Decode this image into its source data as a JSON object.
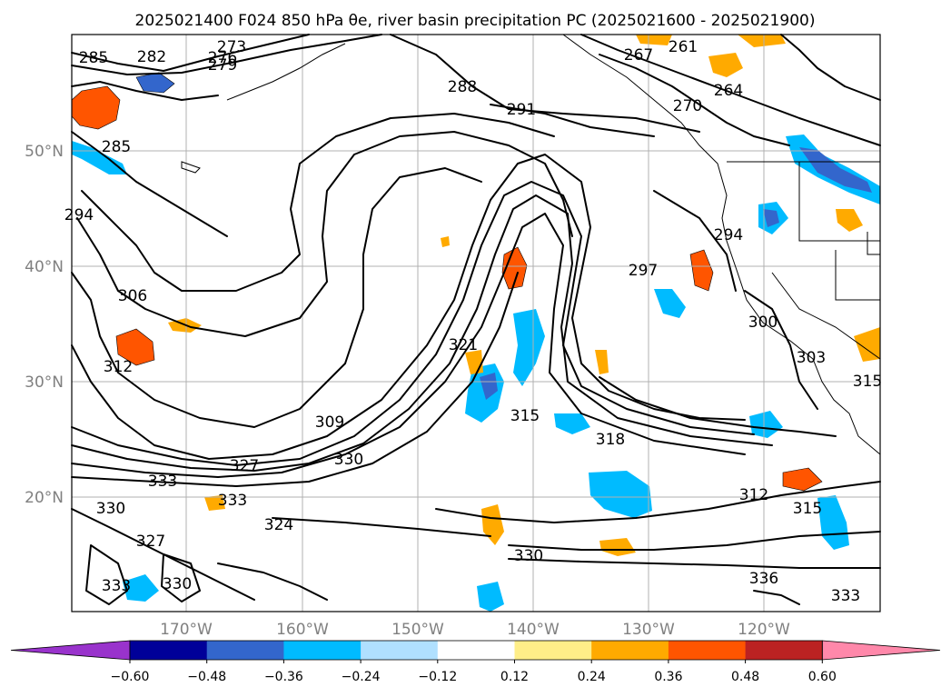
{
  "title": "2025021400 F024 850 hPa θe, river basin precipitation PC (2025021600 - 2025021900)",
  "lat_labels": [
    "50°N",
    "40°N",
    "30°N",
    "20°N"
  ],
  "lon_labels": [
    "170°W",
    "160°W",
    "150°W",
    "140°W",
    "130°W",
    "120°W"
  ],
  "contour_labels": [
    "273",
    "285",
    "282",
    "276",
    "279",
    "261",
    "267",
    "264",
    "270",
    "288",
    "291",
    "285",
    "294",
    "297",
    "294",
    "306",
    "312",
    "300",
    "303",
    "315",
    "309",
    "321",
    "315",
    "318",
    "330",
    "327",
    "333",
    "333",
    "330",
    "324",
    "327",
    "330",
    "333",
    "330",
    "336",
    "333",
    "312",
    "315"
  ],
  "colorbar": {
    "colors": [
      "#9933cc",
      "#000099",
      "#3366cc",
      "#00bbff",
      "#b0e0ff",
      "#ffffff",
      "#ffee88",
      "#ffaa00",
      "#ff5500",
      "#bb2222",
      "#ff88aa"
    ],
    "tick_labels": [
      "−0.60",
      "−0.48",
      "−0.36",
      "−0.24",
      "−0.12",
      "0.12",
      "0.24",
      "0.36",
      "0.48",
      "0.60"
    ]
  },
  "colors": {
    "contour": "#000000",
    "grid": "#b0b0b0",
    "axis_text": "#808080"
  }
}
